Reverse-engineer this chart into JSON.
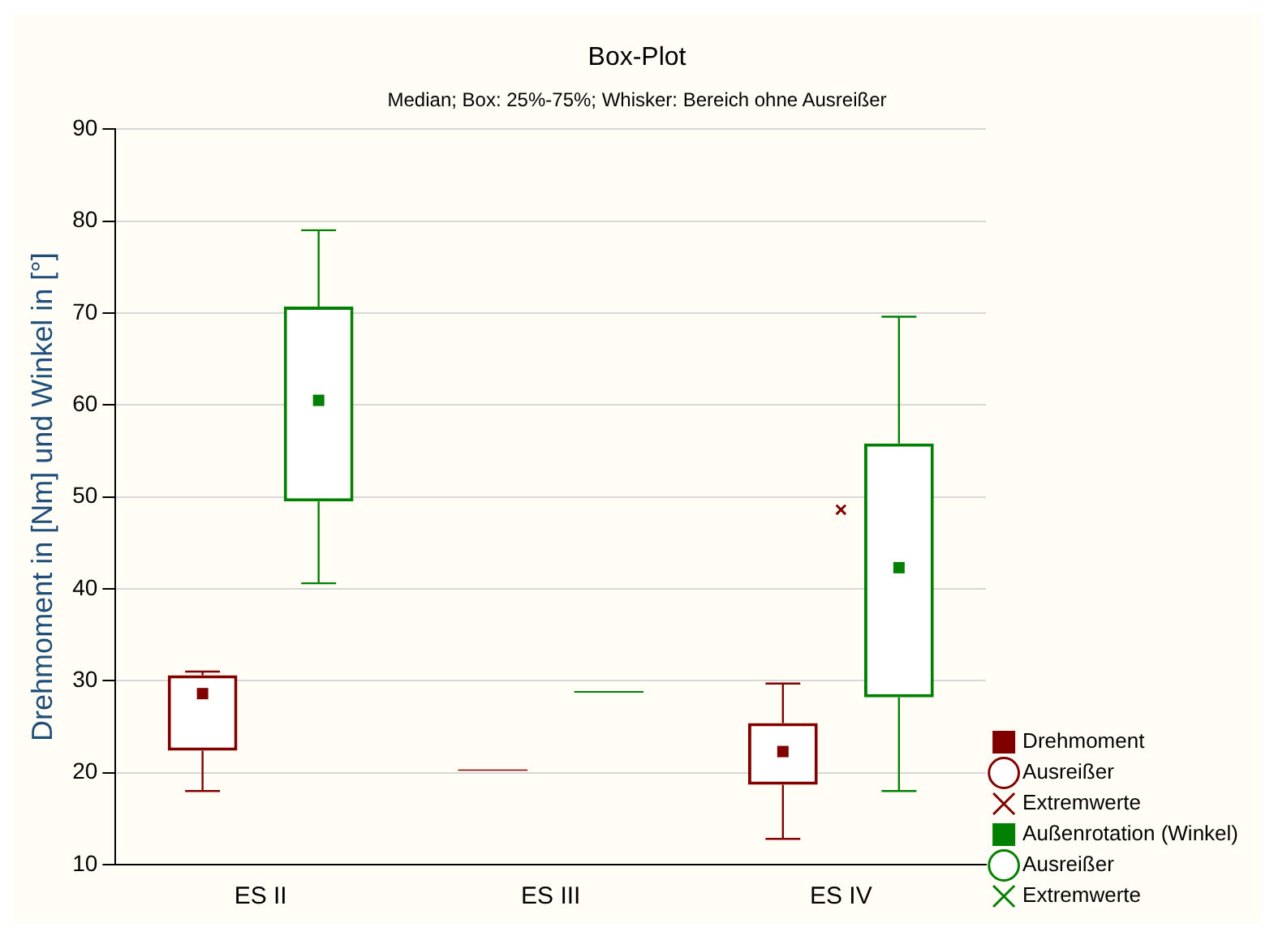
{
  "chart_data": {
    "type": "box",
    "title": "Box-Plot",
    "subtitle": "Median; Box: 25%-75%; Whisker: Bereich ohne Ausreißer",
    "ylabel": "Drehmoment in [Nm] und Winkel in [°]",
    "categories": [
      "ES II",
      "ES III",
      "ES IV"
    ],
    "ylim": [
      10,
      90
    ],
    "yticks": [
      10,
      20,
      30,
      40,
      50,
      60,
      70,
      80,
      90
    ],
    "grid": "y",
    "legend": "bottom right",
    "series": [
      {
        "name": "Drehmoment",
        "type": "box",
        "color": "#800000",
        "boxes": [
          {
            "low": 18.0,
            "q1": 22.4,
            "median": 28.6,
            "q3": 30.6,
            "high": 31.0
          },
          {
            "low": 20.2,
            "q1": 20.2,
            "median": 20.2,
            "q3": 20.2,
            "high": 20.2
          },
          {
            "low": 12.8,
            "q1": 18.7,
            "median": 22.3,
            "q3": 25.4,
            "high": 29.7
          }
        ]
      },
      {
        "name": "Ausreißer",
        "type": "scatter",
        "color": "#800000",
        "marker": "circle",
        "values": [
          null,
          null,
          null
        ]
      },
      {
        "name": "Extremwerte",
        "type": "scatter",
        "color": "#800000",
        "marker": "cross",
        "values": [
          null,
          null,
          48.6
        ]
      },
      {
        "name": "Außenrotation (Winkel)",
        "type": "box",
        "color": "#008000",
        "boxes": [
          {
            "low": 40.6,
            "q1": 49.5,
            "median": 60.5,
            "q3": 70.7,
            "high": 79.0
          },
          {
            "low": 28.7,
            "q1": 28.7,
            "median": 28.7,
            "q3": 28.7,
            "high": 28.7
          },
          {
            "low": 18.0,
            "q1": 28.2,
            "median": 42.3,
            "q3": 55.8,
            "high": 69.6
          }
        ]
      },
      {
        "name": "Ausreißer",
        "type": "scatter",
        "color": "#008000",
        "marker": "circle",
        "values": [
          null,
          null,
          null
        ]
      },
      {
        "name": "Extremwerte",
        "type": "scatter",
        "color": "#008000",
        "marker": "cross",
        "values": [
          null,
          null,
          null
        ]
      }
    ]
  }
}
